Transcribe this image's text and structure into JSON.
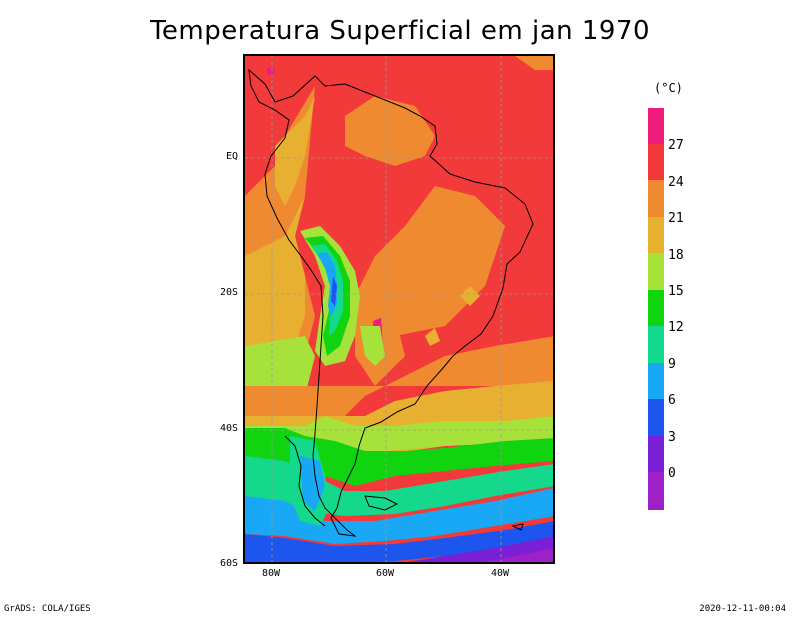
{
  "title": "Temperatura Superficial em jan 1970",
  "unit_label": "(°C)",
  "lat_labels": [
    "EQ",
    "20S",
    "40S",
    "60S"
  ],
  "lon_labels": [
    "80W",
    "60W",
    "40W"
  ],
  "colorbar": {
    "ticks": [
      "27",
      "24",
      "21",
      "18",
      "15",
      "12",
      "9",
      "6",
      "3",
      "0"
    ],
    "colors": [
      "#ef1b7d",
      "#f23a3a",
      "#ef8a30",
      "#e8b030",
      "#a6e23a",
      "#11d411",
      "#14d98c",
      "#18a8f5",
      "#1c56ee",
      "#7a1fd6",
      "#a020c8"
    ]
  },
  "footer_left": "GrADS: COLA/IGES",
  "footer_right": "2020-12-11-00:04"
}
